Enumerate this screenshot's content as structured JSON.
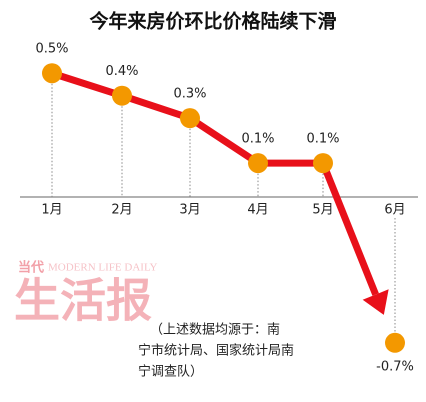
{
  "chart_data": {
    "type": "line",
    "title": "今年来房价环比价格陆续下滑",
    "categories": [
      "1月",
      "2月",
      "3月",
      "4月",
      "5月",
      "6月"
    ],
    "values": [
      0.5,
      0.4,
      0.3,
      0.1,
      0.1,
      -0.7
    ],
    "value_labels": [
      "0.5%",
      "0.4%",
      "0.3%",
      "0.1%",
      "0.1%",
      "-0.7%"
    ],
    "color": "#e8101a",
    "marker_color": "#f39800",
    "ylim": [
      -0.75,
      0.55
    ]
  },
  "watermark": {
    "brand": "当代",
    "name": "MODERN LIFE DAILY",
    "logo": "生活报"
  },
  "note": [
    "（上述数据均源于：南",
    "宁市统计局、国家统计局南",
    "宁调查队）"
  ]
}
